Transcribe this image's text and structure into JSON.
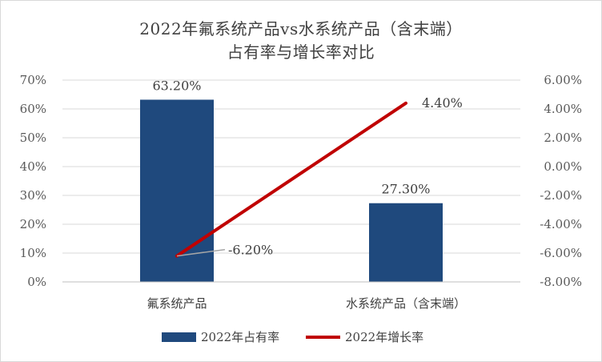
{
  "chart_data": {
    "type": "bar+line",
    "title_line1": "2022年氟系统产品vs水系统产品（含末端）",
    "title_line2": "占有率与增长率对比",
    "categories": [
      "氟系统产品",
      "水系统产品（含末端）"
    ],
    "series": [
      {
        "name": "2022年占有率",
        "type": "bar",
        "axis": "left",
        "values": [
          63.2,
          27.3
        ],
        "labels": [
          "63.20%",
          "27.30%"
        ],
        "color": "#1f497d"
      },
      {
        "name": "2022年增长率",
        "type": "line",
        "axis": "right",
        "values": [
          -6.2,
          4.4
        ],
        "labels": [
          "-6.20%",
          "4.40%"
        ],
        "color": "#c00000"
      }
    ],
    "left_axis": {
      "ylim": [
        0,
        70
      ],
      "ticks": [
        0,
        10,
        20,
        30,
        40,
        50,
        60,
        70
      ],
      "tick_labels": [
        "0%",
        "10%",
        "20%",
        "30%",
        "40%",
        "50%",
        "60%",
        "70%"
      ]
    },
    "right_axis": {
      "ylim": [
        -8,
        6
      ],
      "ticks": [
        -8,
        -6,
        -4,
        -2,
        0,
        2,
        4,
        6
      ],
      "tick_labels": [
        "-8.00%",
        "-6.00%",
        "-4.00%",
        "-2.00%",
        "0.00%",
        "2.00%",
        "4.00%",
        "6.00%"
      ]
    },
    "legend_position": "bottom",
    "grid": "horizontal"
  }
}
